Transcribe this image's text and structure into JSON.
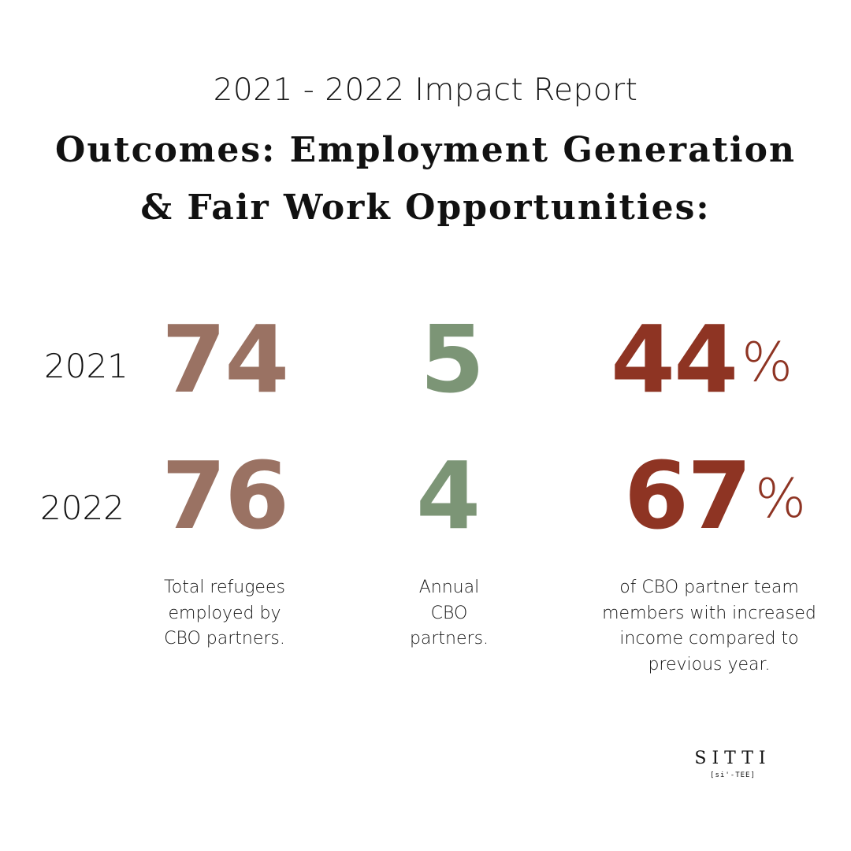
{
  "header": {
    "subtitle": "2021 - 2022 Impact Report",
    "title_line1": "Outcomes: Employment Generation",
    "title_line2": "& Fair Work Opportunities:"
  },
  "years": [
    "2021",
    "2022"
  ],
  "stats": {
    "refugees_employed": {
      "y2021": "74",
      "y2022": "76",
      "description": "Total refugees employed by CBO partners."
    },
    "cbo_partners": {
      "y2021": "5",
      "y2022": "4",
      "description": "Annual CBO partners."
    },
    "increased_income": {
      "y2021": "44",
      "y2022": "67",
      "unit": "%",
      "description": "of CBO partner team members with increased income compared to previous year."
    }
  },
  "descriptions": {
    "refugees_lines": [
      "Total refugees",
      "employed by",
      "CBO partners."
    ],
    "partners_lines": [
      "Annual",
      "CBO",
      "partners."
    ],
    "income_lines": [
      "of CBO partner team",
      "members with increased",
      "income compared to",
      "previous year."
    ]
  },
  "colors": {
    "refugees": "#9a7263",
    "partners": "#7c9576",
    "income": "#8e3423"
  },
  "logo": {
    "wordmark": "SITTI",
    "pronunciation": "[si'-TEE]"
  }
}
